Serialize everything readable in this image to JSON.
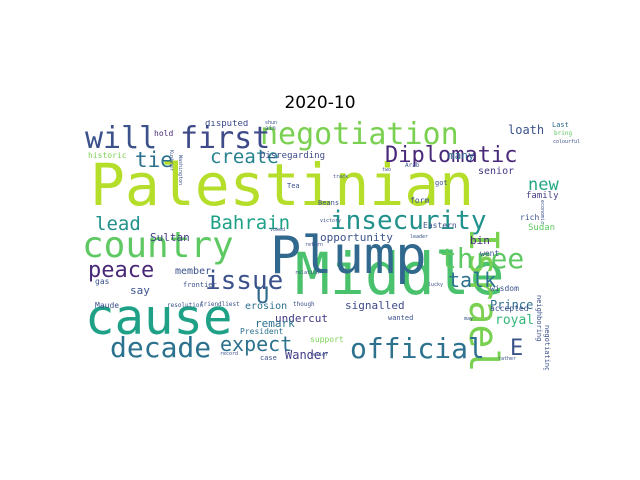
{
  "title": "2020-10",
  "words": [
    {
      "text": "Palestinian",
      "color": "#b5de2b"
    },
    {
      "text": "Middle",
      "color": "#4ac16d"
    },
    {
      "text": "cause",
      "color": "#1fa187"
    },
    {
      "text": "Plump",
      "color": "#31688e"
    },
    {
      "text": "country",
      "color": "#5ec962"
    },
    {
      "text": "Israel",
      "color": "#7ad151"
    },
    {
      "text": "negotiation",
      "color": "#7ad151"
    },
    {
      "text": "will",
      "color": "#3b528b"
    },
    {
      "text": "first",
      "color": "#3e4a89"
    },
    {
      "text": "official",
      "color": "#2c728e"
    },
    {
      "text": "decade",
      "color": "#2c728e"
    },
    {
      "text": "insecurity",
      "color": "#21918c"
    },
    {
      "text": "Diplomatic",
      "color": "#482878"
    },
    {
      "text": "three",
      "color": "#5ec962"
    },
    {
      "text": "issue",
      "color": "#3b528b"
    },
    {
      "text": "peace",
      "color": "#482878"
    },
    {
      "text": "Bahrain",
      "color": "#1fa187"
    },
    {
      "text": "create",
      "color": "#26828e"
    },
    {
      "text": "tie",
      "color": "#2c728e"
    },
    {
      "text": "lead",
      "color": "#21918c"
    },
    {
      "text": "expect",
      "color": "#2c728e"
    },
    {
      "text": "talk",
      "color": "#2c728e"
    },
    {
      "text": "new",
      "color": "#22a884"
    },
    {
      "text": "U",
      "color": "#31688e"
    },
    {
      "text": "E",
      "color": "#3b528b"
    },
    {
      "text": "Sultan",
      "color": "#433e85"
    },
    {
      "text": "opportunity",
      "color": "#3b528b"
    },
    {
      "text": "undercut",
      "color": "#443983"
    },
    {
      "text": "bin",
      "color": "#472d7b"
    },
    {
      "text": "loath",
      "color": "#3b528b"
    },
    {
      "text": "many",
      "color": "#31688e"
    },
    {
      "text": "senior",
      "color": "#443983"
    },
    {
      "text": "Prince",
      "color": "#2c728e"
    },
    {
      "text": "royal",
      "color": "#35b779"
    },
    {
      "text": "remark",
      "color": "#2c728e"
    },
    {
      "text": "Wander",
      "color": "#433e85"
    },
    {
      "text": "member",
      "color": "#3b528b"
    },
    {
      "text": "erosion",
      "color": "#2c728e"
    },
    {
      "text": "say",
      "color": "#3b528b"
    },
    {
      "text": "signalled",
      "color": "#3e4a89"
    },
    {
      "text": "Disregarding",
      "color": "#3e4a89"
    },
    {
      "text": "historic",
      "color": "#7ad151"
    },
    {
      "text": "disputed",
      "color": "#3e4a89"
    },
    {
      "text": "hold",
      "color": "#482878"
    },
    {
      "text": "Last",
      "color": "#31688e"
    },
    {
      "text": "bring",
      "color": "#5ec962"
    },
    {
      "text": "Mediterranean",
      "color": "#b5de2b"
    },
    {
      "text": "Sudan",
      "color": "#5ec962"
    },
    {
      "text": "family",
      "color": "#433e85"
    },
    {
      "text": "rich",
      "color": "#3b528b"
    },
    {
      "text": "went",
      "color": "#3b528b"
    },
    {
      "text": "wisdom",
      "color": "#3b528b"
    },
    {
      "text": "accepted",
      "color": "#3b528b"
    },
    {
      "text": "negotiating",
      "color": "#3b528b"
    },
    {
      "text": "neighboring",
      "color": "#3b528b"
    },
    {
      "text": "Maude",
      "color": "#3b528b"
    },
    {
      "text": "President",
      "color": "#2c728e"
    },
    {
      "text": "frontier",
      "color": "#3b528b"
    },
    {
      "text": "gas",
      "color": "#3b528b"
    },
    {
      "text": "Tea",
      "color": "#3b528b"
    },
    {
      "text": "Beans",
      "color": "#3b528b"
    },
    {
      "text": "support",
      "color": "#7ad151"
    },
    {
      "text": "Eastern",
      "color": "#3b528b"
    },
    {
      "text": "got",
      "color": "#3b528b"
    },
    {
      "text": "form",
      "color": "#3b528b"
    },
    {
      "text": "wanted",
      "color": "#3b528b"
    },
    {
      "text": "case",
      "color": "#3b528b"
    },
    {
      "text": "Arab",
      "color": "#3b528b"
    },
    {
      "text": "colourful",
      "color": "#3b528b"
    },
    {
      "text": "landmark",
      "color": "#3b528b"
    },
    {
      "text": "ain",
      "color": "#3b528b"
    },
    {
      "text": "shun",
      "color": "#3b528b"
    },
    {
      "text": "track",
      "color": "#3b528b"
    },
    {
      "text": "leader",
      "color": "#3b528b"
    },
    {
      "text": "return",
      "color": "#3b528b"
    },
    {
      "text": "victory",
      "color": "#3b528b"
    },
    {
      "text": "vowed",
      "color": "#3b528b"
    },
    {
      "text": "relation",
      "color": "#3b528b"
    },
    {
      "text": "though",
      "color": "#3b528b"
    },
    {
      "text": "resolution",
      "color": "#3b528b"
    },
    {
      "text": "friendliest",
      "color": "#3b528b"
    },
    {
      "text": "record",
      "color": "#3b528b"
    },
    {
      "text": "relief",
      "color": "#3b528b"
    },
    {
      "text": "rather",
      "color": "#3b528b"
    },
    {
      "text": "may",
      "color": "#3b528b"
    },
    {
      "text": "economic",
      "color": "#3b528b"
    },
    {
      "text": "two",
      "color": "#3b528b"
    },
    {
      "text": "lucky",
      "color": "#3b528b"
    },
    {
      "text": "Washington",
      "color": "#3b528b"
    },
    {
      "text": "Kushner",
      "color": "#3b528b"
    }
  ]
}
